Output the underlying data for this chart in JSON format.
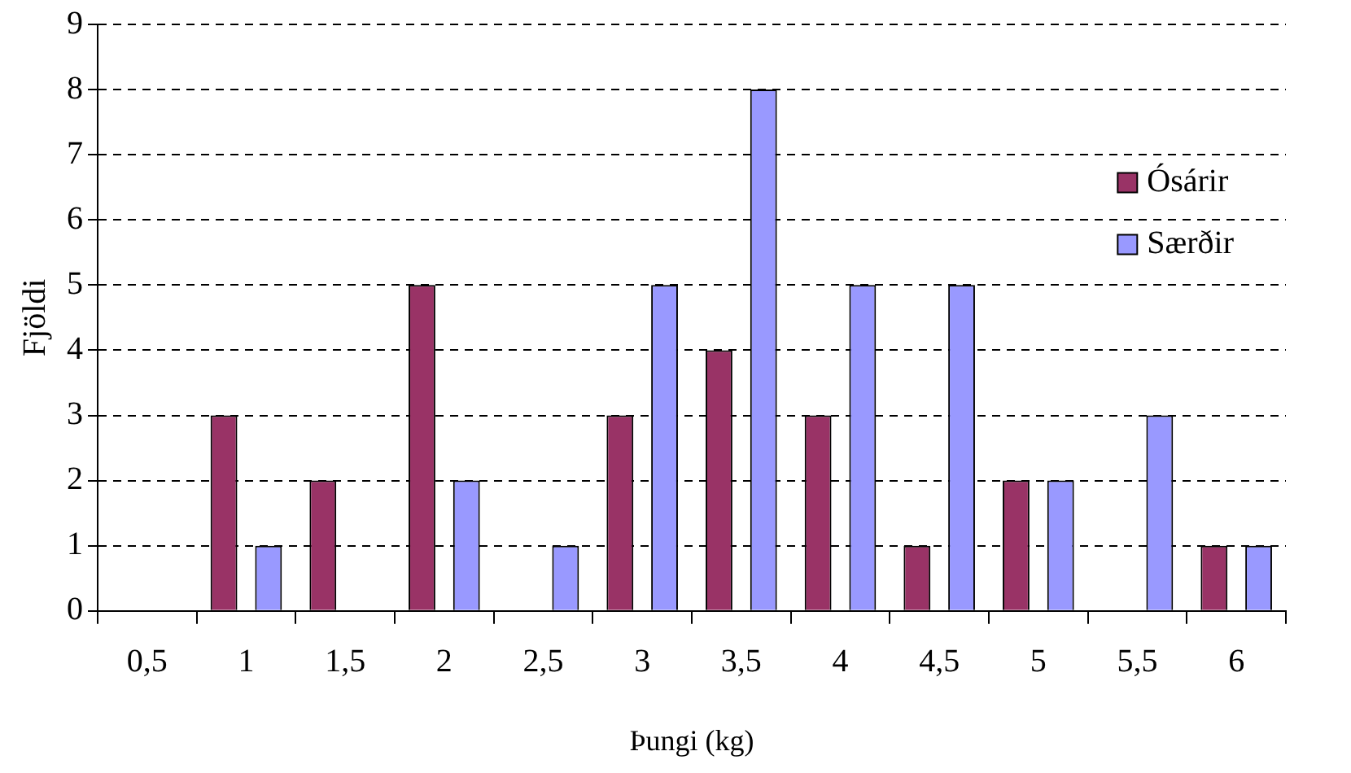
{
  "chart_data": {
    "type": "bar",
    "xlabel": "Þungi (kg)",
    "ylabel": "Fjöldi",
    "categories": [
      "0,5",
      "1",
      "1,5",
      "2",
      "2,5",
      "3",
      "3,5",
      "4",
      "4,5",
      "5",
      "5,5",
      "6"
    ],
    "series": [
      {
        "name": "Ósárir",
        "color": "#993366",
        "values": [
          0,
          3,
          2,
          5,
          0,
          3,
          4,
          3,
          1,
          2,
          0,
          1
        ]
      },
      {
        "name": "Særðir",
        "color": "#9999ff",
        "values": [
          0,
          1,
          0,
          2,
          1,
          5,
          8,
          5,
          5,
          2,
          3,
          1
        ]
      }
    ],
    "ylim": [
      0,
      9
    ],
    "yticks": [
      0,
      1,
      2,
      3,
      4,
      5,
      6,
      7,
      8,
      9
    ],
    "grid": "y",
    "legend": "right",
    "line_style": "dashed"
  }
}
